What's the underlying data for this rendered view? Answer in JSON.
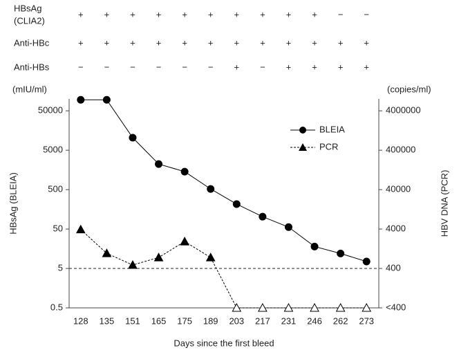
{
  "chart_data": {
    "type": "line",
    "status_table": {
      "rows": [
        {
          "label": [
            "HBsAg",
            "(CLIA2)"
          ],
          "values": [
            "+",
            "+",
            "+",
            "+",
            "+",
            "+",
            "+",
            "+",
            "+",
            "+",
            "−",
            "−"
          ]
        },
        {
          "label": [
            "Anti-HBc"
          ],
          "values": [
            "+",
            "+",
            "+",
            "+",
            "+",
            "+",
            "+",
            "+",
            "+",
            "+",
            "+",
            "+"
          ]
        },
        {
          "label": [
            "Anti-HBs"
          ],
          "values": [
            "−",
            "−",
            "−",
            "−",
            "−",
            "−",
            "+",
            "−",
            "+",
            "+",
            "+",
            "+"
          ]
        }
      ]
    },
    "y_unit": "(mIU/ml)",
    "y2_unit": "(copies/ml)",
    "xlabel": "Days since the first bleed",
    "ylabel": "HBsAg (BLEIA)",
    "y2label": "HBV DNA (PCR)",
    "categories": [
      "128",
      "135",
      "151",
      "165",
      "175",
      "189",
      "203",
      "217",
      "231",
      "246",
      "262",
      "273"
    ],
    "series": [
      {
        "name": "BLEIA",
        "color": "#000000",
        "marker": "circle",
        "dash": false,
        "axis": "y",
        "values": [
          95000,
          95000,
          10400,
          2230,
          1430,
          520,
          215,
          103,
          56,
          18,
          12,
          7.5
        ]
      },
      {
        "name": "PCR",
        "color": "#000000",
        "marker": "triangle",
        "dash": true,
        "axis": "y2",
        "values": [
          3900,
          970,
          490,
          760,
          1930,
          760,
          40,
          40,
          40,
          40,
          40,
          40
        ]
      }
    ],
    "log_scale": true,
    "ylim": [
      0.5,
      100000
    ],
    "yticks": [
      0.5,
      5,
      50,
      500,
      5000,
      50000
    ],
    "y2lim": [
      40,
      8000000
    ],
    "y2ticks": [
      {
        "value": 40,
        "label": "<400"
      },
      400,
      4000,
      40000,
      400000,
      4000000
    ],
    "reference_line": {
      "axis": "y2",
      "value": 400
    },
    "legend": "upper right"
  }
}
